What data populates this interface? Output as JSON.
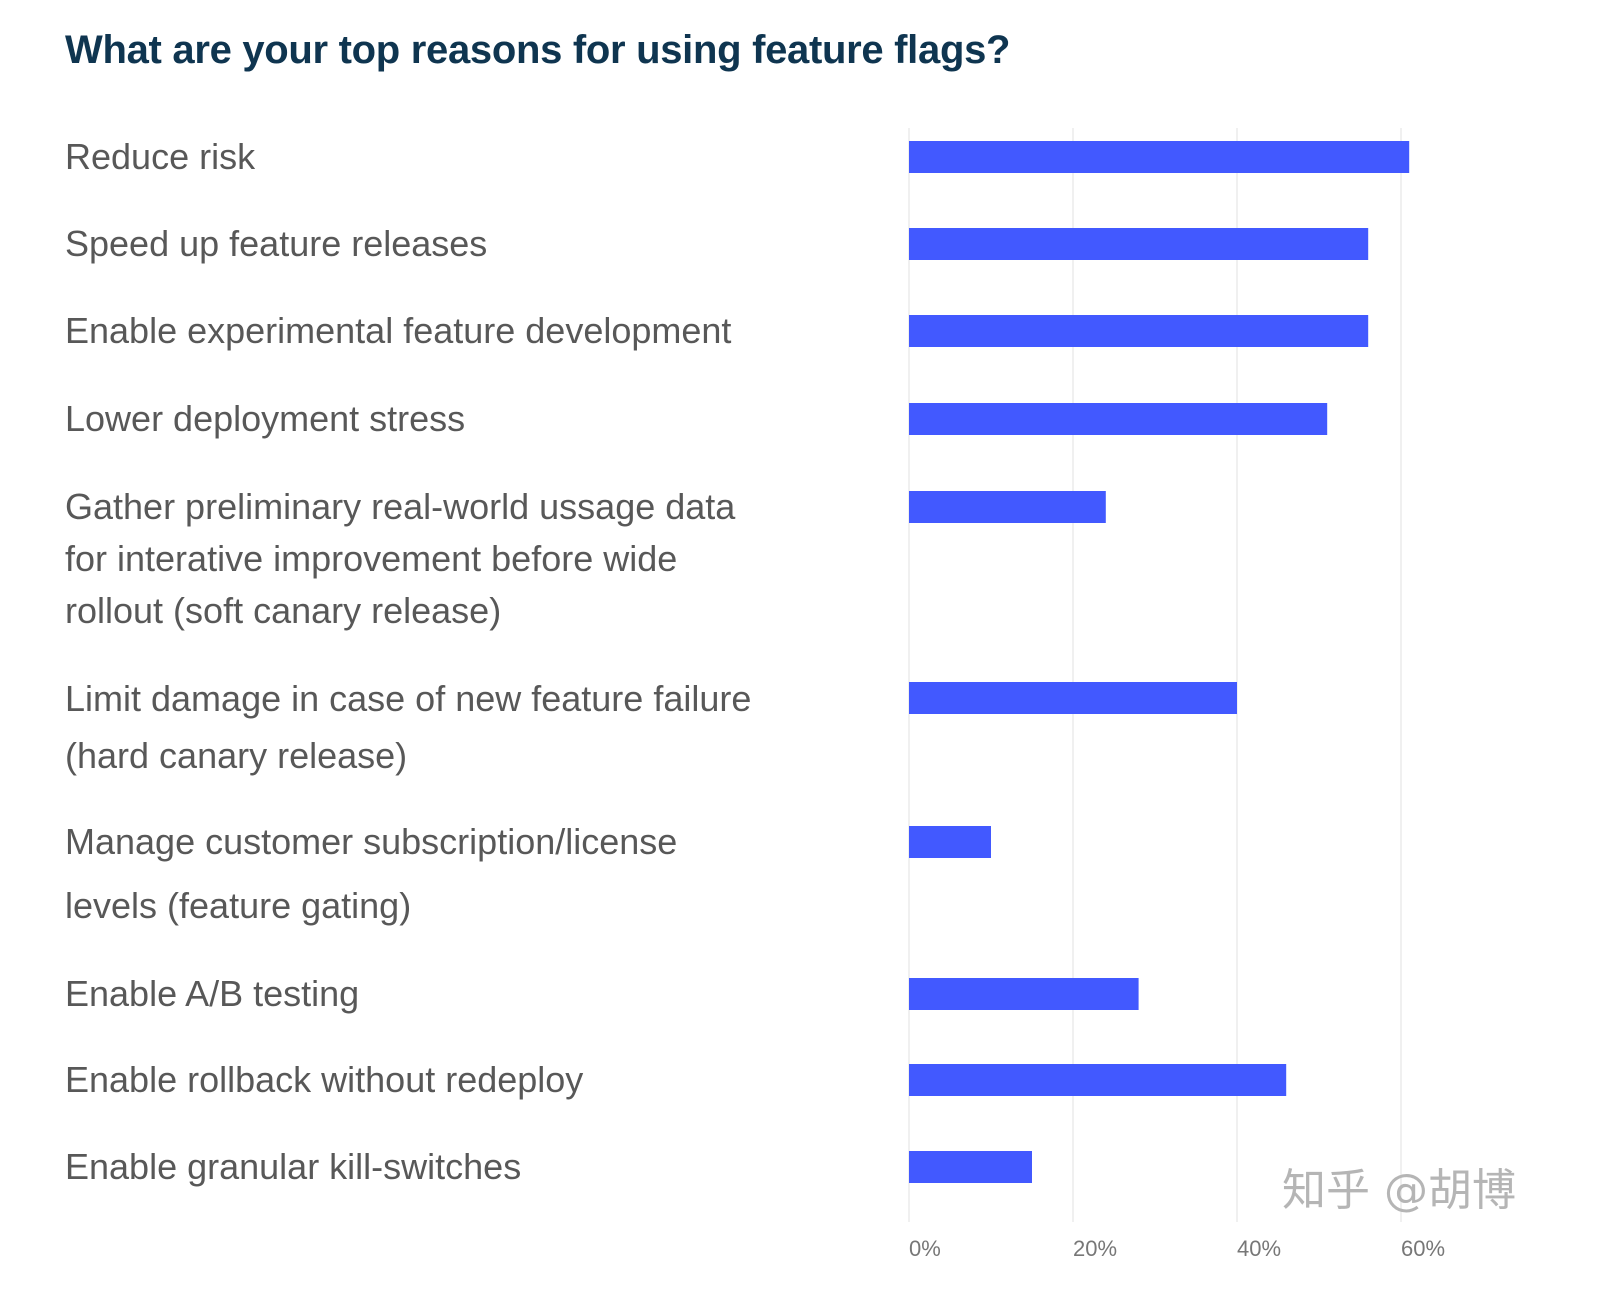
{
  "chart_data": {
    "type": "bar",
    "orientation": "horizontal",
    "title": "What are your top reasons for using feature flags?",
    "categories": [
      [
        "Reduce risk"
      ],
      [
        "Speed up feature releases"
      ],
      [
        "Enable experimental feature development"
      ],
      [
        "Lower deployment stress"
      ],
      [
        "Gather preliminary real-world ussage data",
        "for interative improvement before wide",
        "rollout (soft canary release)"
      ],
      [
        "Limit damage in case of new feature failure",
        "(hard canary release)"
      ],
      [
        "Manage customer subscription/license",
        "levels (feature gating)"
      ],
      [
        "Enable A/B testing"
      ],
      [
        "Enable rollback without redeploy"
      ],
      [
        "Enable granular kill-switches"
      ]
    ],
    "values": [
      61,
      56,
      56,
      51,
      24,
      40,
      10,
      28,
      46,
      15
    ],
    "xlim": [
      0,
      60
    ],
    "xticks": [
      "0%",
      "20%",
      "40%",
      "60%"
    ],
    "xtick_values": [
      0,
      20,
      40,
      60
    ],
    "grid": true,
    "bar_color": "#4259ff",
    "xlabel": "",
    "ylabel": ""
  },
  "watermark": "知乎 @胡博"
}
